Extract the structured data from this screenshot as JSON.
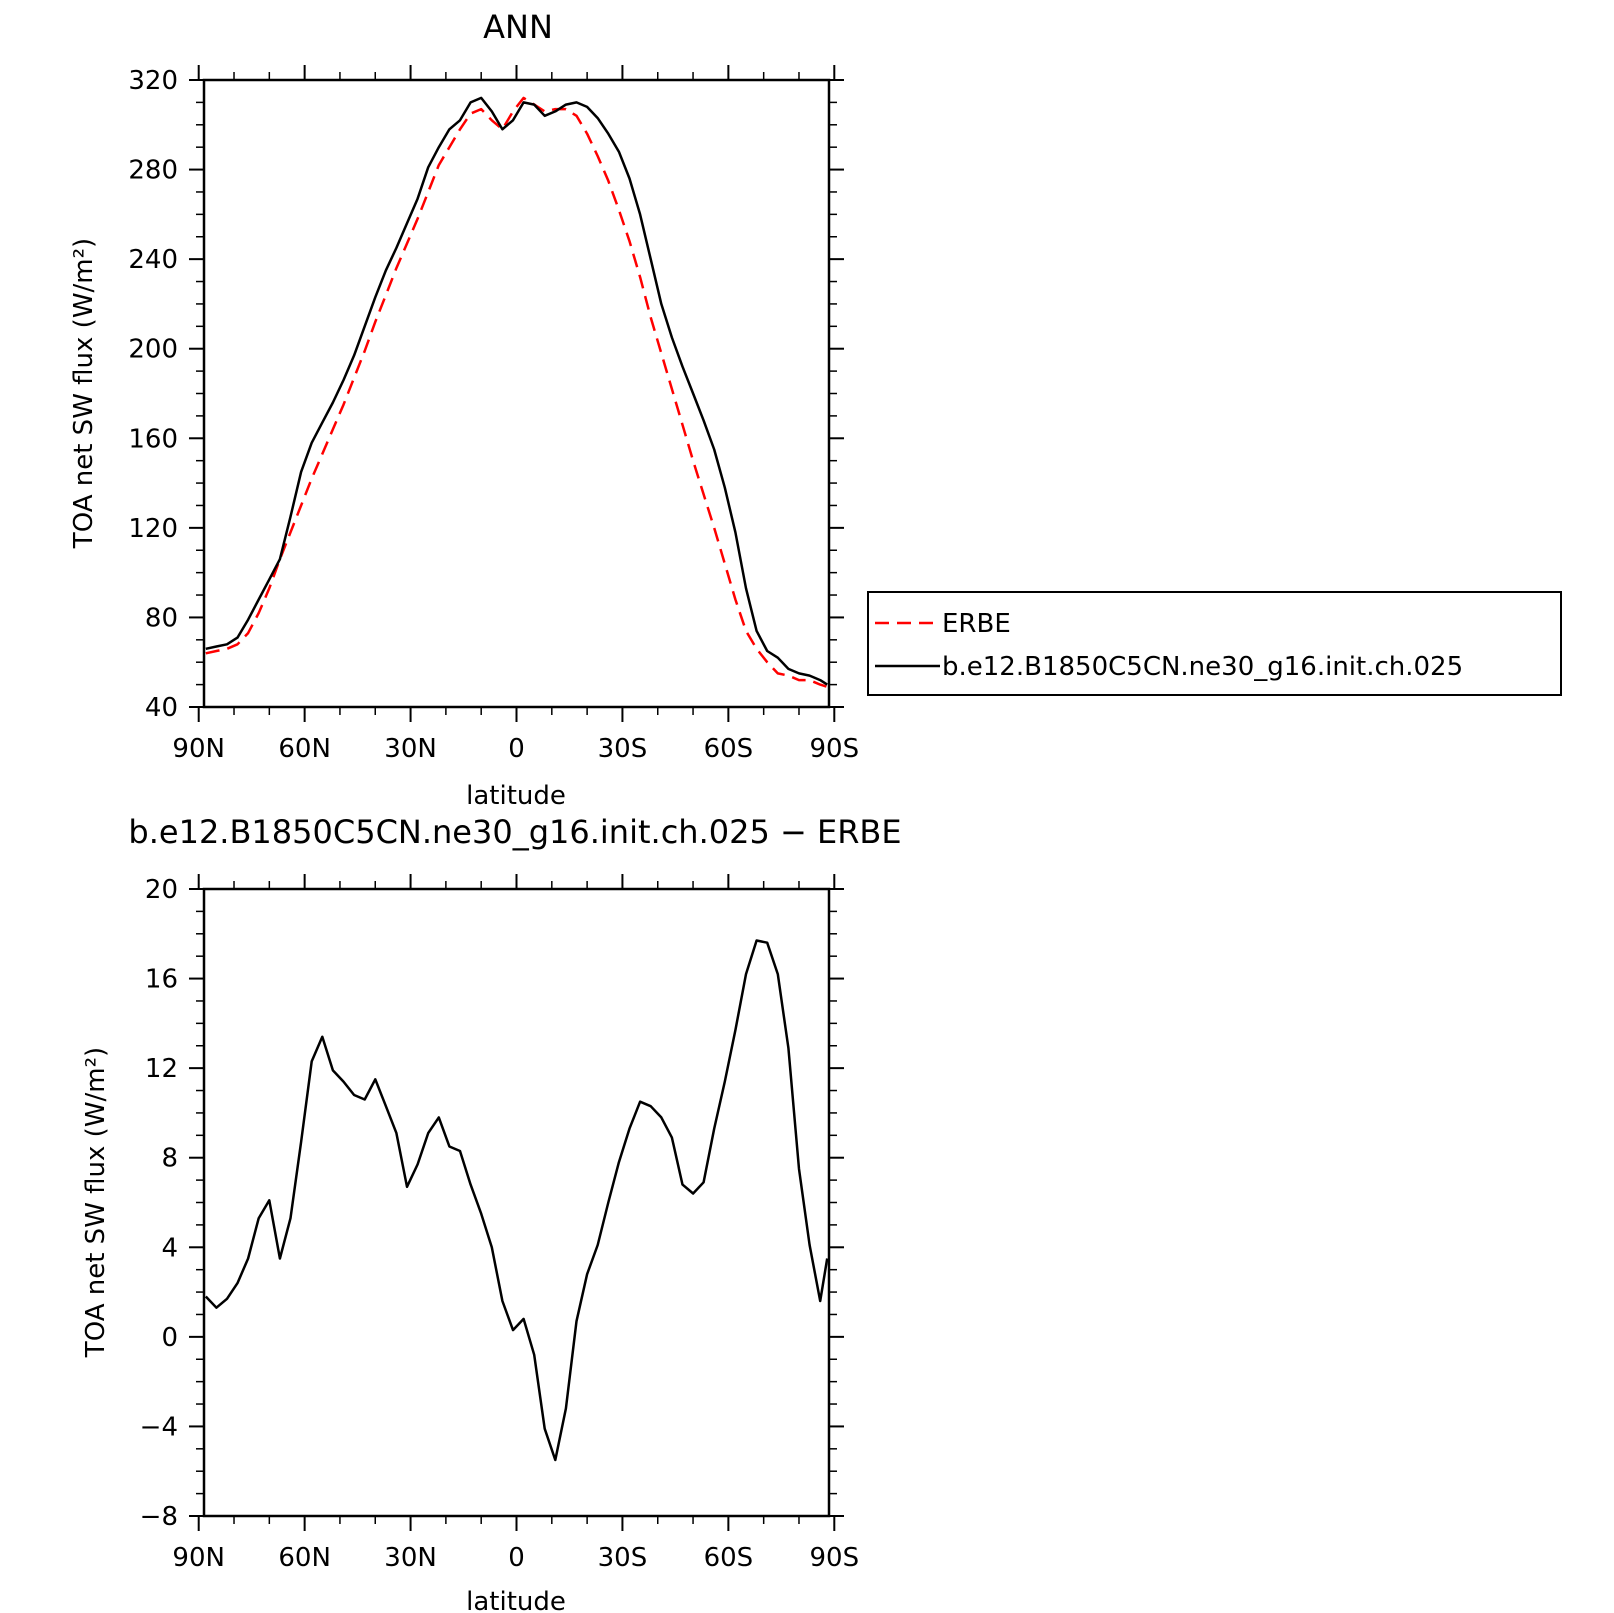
{
  "chart_data": [
    {
      "type": "line",
      "title": "ANN",
      "xlabel": "latitude",
      "ylabel": "TOA net SW flux (W/m²)",
      "xlim": [
        -88.5,
        88.5
      ],
      "ylim": [
        40,
        320
      ],
      "x_direction": "north-to-south",
      "xticks": [
        {
          "value": -90,
          "label": "90N"
        },
        {
          "value": -60,
          "label": "60N"
        },
        {
          "value": -30,
          "label": "30N"
        },
        {
          "value": 0,
          "label": "0"
        },
        {
          "value": 30,
          "label": "30S"
        },
        {
          "value": 60,
          "label": "60S"
        },
        {
          "value": 90,
          "label": "90S"
        }
      ],
      "yticks": [
        {
          "value": 40,
          "label": "40"
        },
        {
          "value": 80,
          "label": "80"
        },
        {
          "value": 120,
          "label": "120"
        },
        {
          "value": 160,
          "label": "160"
        },
        {
          "value": 200,
          "label": "200"
        },
        {
          "value": 240,
          "label": "240"
        },
        {
          "value": 280,
          "label": "280"
        },
        {
          "value": 320,
          "label": "320"
        }
      ],
      "legend": {
        "placement": "right",
        "entries": [
          {
            "label": "ERBE",
            "color": "#ff0000",
            "dash": true
          },
          {
            "label": "b.e12.B1850C5CN.ne30_g16.init.ch.025",
            "color": "#000000",
            "dash": false
          }
        ]
      },
      "series": [
        {
          "name": "ERBE",
          "color": "#ff0000",
          "dashed": true,
          "x": [
            -88,
            -85,
            -82,
            -79,
            -76,
            -73,
            -70,
            -67,
            -64,
            -61,
            -58,
            -55,
            -52,
            -49,
            -46,
            -43,
            -40,
            -37,
            -34,
            -31,
            -28,
            -25,
            -22,
            -19,
            -16,
            -13,
            -10,
            -7,
            -4,
            -1,
            2,
            5,
            8,
            11,
            14,
            17,
            20,
            23,
            26,
            29,
            32,
            35,
            38,
            41,
            44,
            47,
            50,
            53,
            56,
            59,
            62,
            65,
            68,
            71,
            74,
            77,
            80,
            83,
            86,
            88
          ],
          "y": [
            64,
            65,
            66,
            68,
            73,
            82,
            93,
            106,
            118,
            130,
            142,
            153,
            164,
            175,
            187,
            199,
            212,
            224,
            236,
            247,
            258,
            270,
            282,
            290,
            298,
            305,
            307,
            302,
            298,
            306,
            312,
            309,
            306,
            307,
            307,
            304,
            296,
            286,
            275,
            262,
            248,
            232,
            214,
            198,
            182,
            166,
            150,
            135,
            120,
            104,
            88,
            74,
            66,
            60,
            55,
            54,
            52,
            52,
            50,
            49
          ]
        },
        {
          "name": "b.e12.B1850C5CN.ne30_g16.init.ch.025",
          "color": "#000000",
          "dashed": false,
          "x": [
            -88,
            -85,
            -82,
            -79,
            -76,
            -73,
            -70,
            -67,
            -64,
            -61,
            -58,
            -55,
            -52,
            -49,
            -46,
            -43,
            -40,
            -37,
            -34,
            -31,
            -28,
            -25,
            -22,
            -19,
            -16,
            -13,
            -10,
            -7,
            -4,
            -1,
            2,
            5,
            8,
            11,
            14,
            17,
            20,
            23,
            26,
            29,
            32,
            35,
            38,
            41,
            44,
            47,
            50,
            53,
            56,
            59,
            62,
            65,
            68,
            71,
            74,
            77,
            80,
            83,
            86,
            88
          ],
          "y": [
            66,
            67,
            68,
            71,
            79,
            88,
            97,
            106,
            125,
            145,
            158,
            167,
            176,
            186,
            197,
            210,
            223,
            235,
            245,
            256,
            267,
            281,
            290,
            298,
            302,
            310,
            312,
            306,
            298,
            302,
            310,
            309,
            304,
            306,
            309,
            310,
            308,
            303,
            296,
            288,
            276,
            260,
            240,
            220,
            205,
            192,
            180,
            168,
            155,
            138,
            118,
            93,
            74,
            65,
            62,
            57,
            55,
            54,
            52,
            50
          ]
        }
      ]
    },
    {
      "type": "line",
      "title": "b.e12.B1850C5CN.ne30_g16.init.ch.025 − ERBE",
      "xlabel": "latitude",
      "ylabel": "TOA net SW flux (W/m²)",
      "xlim": [
        -88.5,
        88.5
      ],
      "ylim": [
        -8,
        20
      ],
      "x_direction": "north-to-south",
      "xticks": [
        {
          "value": -90,
          "label": "90N"
        },
        {
          "value": -60,
          "label": "60N"
        },
        {
          "value": -30,
          "label": "30N"
        },
        {
          "value": 0,
          "label": "0"
        },
        {
          "value": 30,
          "label": "30S"
        },
        {
          "value": 60,
          "label": "60S"
        },
        {
          "value": 90,
          "label": "90S"
        }
      ],
      "yticks": [
        {
          "value": -8,
          "label": "−8"
        },
        {
          "value": -4,
          "label": "−4"
        },
        {
          "value": 0,
          "label": "0"
        },
        {
          "value": 4,
          "label": "4"
        },
        {
          "value": 8,
          "label": "8"
        },
        {
          "value": 12,
          "label": "12"
        },
        {
          "value": 16,
          "label": "16"
        },
        {
          "value": 20,
          "label": "20"
        }
      ],
      "series": [
        {
          "color": "#000000",
          "dashed": false,
          "x": [
            -88,
            -85,
            -82,
            -79,
            -76,
            -73,
            -70,
            -67,
            -64,
            -61,
            -58,
            -55,
            -52,
            -49,
            -46,
            -43,
            -40,
            -37,
            -34,
            -31,
            -28,
            -25,
            -22,
            -19,
            -16,
            -13,
            -10,
            -7,
            -4,
            -1,
            2,
            5,
            8,
            11,
            14,
            17,
            20,
            23,
            26,
            29,
            32,
            35,
            38,
            41,
            44,
            47,
            50,
            53,
            56,
            59,
            62,
            65,
            68,
            71,
            74,
            77,
            80,
            83,
            86,
            88
          ],
          "y": [
            1.8,
            1.3,
            1.7,
            2.4,
            3.5,
            5.3,
            6.1,
            3.5,
            5.3,
            8.7,
            12.3,
            13.4,
            11.9,
            11.4,
            10.8,
            10.6,
            11.5,
            10.3,
            9.1,
            6.7,
            7.7,
            9.1,
            9.8,
            8.5,
            8.3,
            6.8,
            5.5,
            4.0,
            1.6,
            0.3,
            0.8,
            -0.8,
            -4.1,
            -5.5,
            -3.2,
            0.7,
            2.8,
            4.1,
            6.0,
            7.8,
            9.3,
            10.5,
            10.3,
            9.8,
            8.9,
            6.8,
            6.4,
            6.9,
            9.3,
            11.4,
            13.7,
            16.2,
            17.7,
            17.6,
            16.2,
            12.9,
            7.5,
            4.1,
            1.6,
            3.5
          ]
        }
      ]
    }
  ]
}
